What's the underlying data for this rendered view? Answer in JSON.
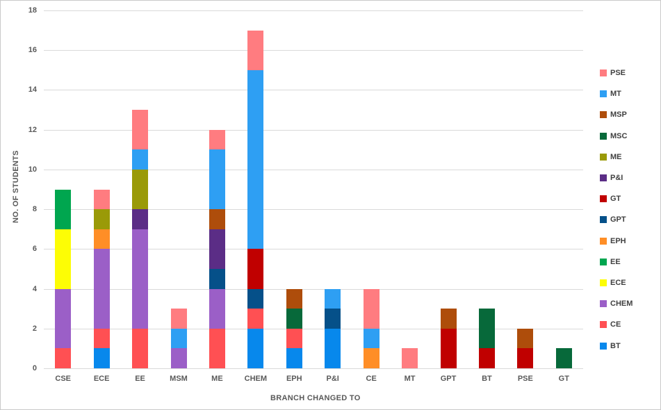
{
  "chart_data": {
    "type": "bar",
    "stacked": true,
    "title": "",
    "xlabel": "BRANCH CHANGED TO",
    "ylabel": "NO. OF STUDENTS",
    "ylim": [
      0,
      18
    ],
    "ytick_step": 2,
    "yticks": [
      "0",
      "2",
      "4",
      "6",
      "8",
      "10",
      "12",
      "14",
      "16",
      "18"
    ],
    "grid": true,
    "legend_position": "right",
    "categories": [
      "CSE",
      "ECE",
      "EE",
      "MSM",
      "ME",
      "CHEM",
      "EPH",
      "P&I",
      "CE",
      "MT",
      "GPT",
      "BT",
      "PSE",
      "GT"
    ],
    "series": [
      {
        "name": "BT",
        "color": "#0788ec",
        "values": [
          0,
          1,
          0,
          0,
          0,
          2,
          1,
          2,
          0,
          0,
          0,
          0,
          0,
          0
        ]
      },
      {
        "name": "CE",
        "color": "#ff5053",
        "values": [
          1,
          1,
          2,
          0,
          2,
          1,
          1,
          0,
          0,
          0,
          0,
          0,
          0,
          0
        ]
      },
      {
        "name": "CHEM",
        "color": "#9b5fc7",
        "values": [
          3,
          4,
          5,
          1,
          2,
          0,
          0,
          0,
          0,
          0,
          0,
          0,
          0,
          0
        ]
      },
      {
        "name": "ECE",
        "color": "#fdfd05",
        "values": [
          3,
          0,
          0,
          0,
          0,
          0,
          0,
          0,
          0,
          0,
          0,
          0,
          0,
          0
        ]
      },
      {
        "name": "EE",
        "color": "#00a64f",
        "values": [
          2,
          0,
          0,
          0,
          0,
          0,
          0,
          0,
          0,
          0,
          0,
          0,
          0,
          0
        ]
      },
      {
        "name": "EPH",
        "color": "#ff8e26",
        "values": [
          0,
          1,
          0,
          0,
          0,
          0,
          0,
          0,
          1,
          0,
          0,
          0,
          0,
          0
        ]
      },
      {
        "name": "GPT",
        "color": "#055089",
        "values": [
          0,
          0,
          0,
          0,
          1,
          1,
          0,
          1,
          0,
          0,
          0,
          0,
          0,
          0
        ]
      },
      {
        "name": "GT",
        "color": "#c00000",
        "values": [
          0,
          0,
          0,
          0,
          0,
          2,
          0,
          0,
          0,
          0,
          2,
          1,
          1,
          0
        ]
      },
      {
        "name": "P&I",
        "color": "#5b2d86",
        "values": [
          0,
          0,
          1,
          0,
          2,
          0,
          0,
          0,
          0,
          0,
          0,
          0,
          0,
          0
        ]
      },
      {
        "name": "ME",
        "color": "#9a9a08",
        "values": [
          0,
          1,
          2,
          0,
          0,
          0,
          0,
          0,
          0,
          0,
          0,
          0,
          0,
          0
        ]
      },
      {
        "name": "MSC",
        "color": "#07693a",
        "values": [
          0,
          0,
          0,
          0,
          0,
          0,
          1,
          0,
          0,
          0,
          0,
          2,
          0,
          1
        ]
      },
      {
        "name": "MSP",
        "color": "#ae4d0b",
        "values": [
          0,
          0,
          0,
          0,
          1,
          0,
          1,
          0,
          0,
          0,
          1,
          0,
          1,
          0
        ]
      },
      {
        "name": "MT",
        "color": "#2e9ff3",
        "values": [
          0,
          0,
          1,
          1,
          3,
          9,
          0,
          1,
          1,
          0,
          0,
          0,
          0,
          0
        ]
      },
      {
        "name": "PSE",
        "color": "#ff7c80",
        "values": [
          0,
          1,
          2,
          1,
          1,
          2,
          0,
          0,
          2,
          1,
          0,
          0,
          0,
          0
        ]
      }
    ],
    "legend_order_top_to_bottom": [
      "PSE",
      "MT",
      "MSP",
      "MSC",
      "ME",
      "P&I",
      "GT",
      "GPT",
      "EPH",
      "EE",
      "ECE",
      "CHEM",
      "CE",
      "BT"
    ],
    "colors": {
      "gridline": "#d9d9d9",
      "axis_text": "#595959",
      "legend_text": "#404040",
      "background": "#ffffff"
    }
  }
}
